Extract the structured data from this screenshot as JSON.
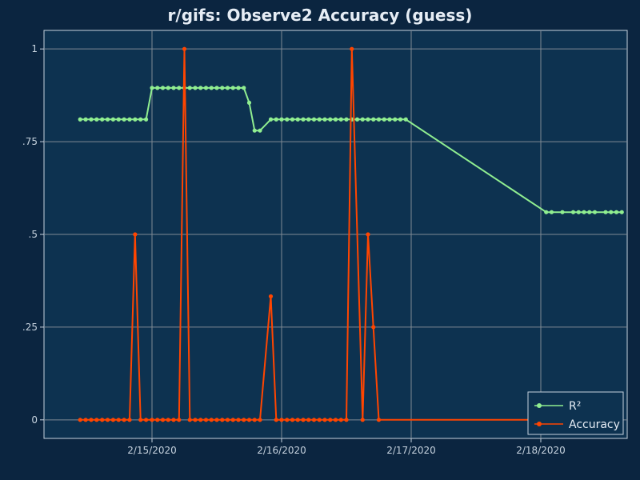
{
  "colors": {
    "page_background": "#0b2540",
    "plot_background": "#0d3250",
    "grid": "#7f8a94",
    "axis": "#c6d2de",
    "r2": "#90ee90",
    "accuracy": "#ff4500"
  },
  "chart_data": {
    "type": "line",
    "title": "r/gifs: Observe2 Accuracy (guess)",
    "xlabel": "",
    "ylabel": "",
    "x_axis": {
      "type": "date",
      "range": [
        "2020-02-14T04:00",
        "2020-02-18T16:00"
      ],
      "ticks": [
        {
          "value": "2020-02-15T00:00",
          "label": "2/15/2020"
        },
        {
          "value": "2020-02-16T00:00",
          "label": "2/16/2020"
        },
        {
          "value": "2020-02-17T00:00",
          "label": "2/17/2020"
        },
        {
          "value": "2020-02-18T00:00",
          "label": "2/18/2020"
        }
      ]
    },
    "y_axis": {
      "range": [
        -0.05,
        1.05
      ],
      "ticks": [
        {
          "value": 0,
          "label": "0"
        },
        {
          "value": 0.25,
          "label": ".25"
        },
        {
          "value": 0.5,
          "label": ".5"
        },
        {
          "value": 0.75,
          "label": ".75"
        },
        {
          "value": 1,
          "label": "1"
        }
      ]
    },
    "grid": true,
    "legend_position": "bottom-right",
    "series": [
      {
        "name": "R²",
        "color": "#90ee90",
        "points": [
          [
            "2020-02-14T10:42",
            0.81
          ],
          [
            "2020-02-14T11:43",
            0.81
          ],
          [
            "2020-02-14T12:44",
            0.81
          ],
          [
            "2020-02-14T13:45",
            0.81
          ],
          [
            "2020-02-14T14:46",
            0.81
          ],
          [
            "2020-02-14T15:47",
            0.81
          ],
          [
            "2020-02-14T16:48",
            0.81
          ],
          [
            "2020-02-14T17:49",
            0.81
          ],
          [
            "2020-02-14T18:50",
            0.81
          ],
          [
            "2020-02-14T19:51",
            0.81
          ],
          [
            "2020-02-14T20:52",
            0.81
          ],
          [
            "2020-02-14T21:53",
            0.81
          ],
          [
            "2020-02-14T22:54",
            0.81
          ],
          [
            "2020-02-15T00:00",
            0.895
          ],
          [
            "2020-02-15T01:00",
            0.895
          ],
          [
            "2020-02-15T02:00",
            0.895
          ],
          [
            "2020-02-15T03:00",
            0.895
          ],
          [
            "2020-02-15T04:00",
            0.895
          ],
          [
            "2020-02-15T05:00",
            0.895
          ],
          [
            "2020-02-15T06:00",
            0.895
          ],
          [
            "2020-02-15T07:00",
            0.895
          ],
          [
            "2020-02-15T08:00",
            0.895
          ],
          [
            "2020-02-15T09:00",
            0.895
          ],
          [
            "2020-02-15T10:00",
            0.895
          ],
          [
            "2020-02-15T11:00",
            0.895
          ],
          [
            "2020-02-15T12:00",
            0.895
          ],
          [
            "2020-02-15T13:00",
            0.895
          ],
          [
            "2020-02-15T14:00",
            0.895
          ],
          [
            "2020-02-15T15:00",
            0.895
          ],
          [
            "2020-02-15T16:00",
            0.895
          ],
          [
            "2020-02-15T17:00",
            0.895
          ],
          [
            "2020-02-15T18:00",
            0.855
          ],
          [
            "2020-02-15T19:00",
            0.78
          ],
          [
            "2020-02-15T20:00",
            0.78
          ],
          [
            "2020-02-15T22:00",
            0.81
          ],
          [
            "2020-02-15T23:00",
            0.81
          ],
          [
            "2020-02-16T00:00",
            0.81
          ],
          [
            "2020-02-16T01:00",
            0.81
          ],
          [
            "2020-02-16T02:00",
            0.81
          ],
          [
            "2020-02-16T03:00",
            0.81
          ],
          [
            "2020-02-16T04:00",
            0.81
          ],
          [
            "2020-02-16T05:00",
            0.81
          ],
          [
            "2020-02-16T06:00",
            0.81
          ],
          [
            "2020-02-16T07:00",
            0.81
          ],
          [
            "2020-02-16T08:00",
            0.81
          ],
          [
            "2020-02-16T09:00",
            0.81
          ],
          [
            "2020-02-16T10:00",
            0.81
          ],
          [
            "2020-02-16T11:00",
            0.81
          ],
          [
            "2020-02-16T12:00",
            0.81
          ],
          [
            "2020-02-16T13:00",
            0.81
          ],
          [
            "2020-02-16T14:00",
            0.81
          ],
          [
            "2020-02-16T15:00",
            0.81
          ],
          [
            "2020-02-16T16:00",
            0.81
          ],
          [
            "2020-02-16T17:00",
            0.81
          ],
          [
            "2020-02-16T18:00",
            0.81
          ],
          [
            "2020-02-16T19:00",
            0.81
          ],
          [
            "2020-02-16T20:00",
            0.81
          ],
          [
            "2020-02-16T21:00",
            0.81
          ],
          [
            "2020-02-16T22:00",
            0.81
          ],
          [
            "2020-02-16T23:00",
            0.81
          ],
          [
            "2020-02-18T01:00",
            0.56
          ],
          [
            "2020-02-18T02:00",
            0.56
          ],
          [
            "2020-02-18T04:00",
            0.56
          ],
          [
            "2020-02-18T06:00",
            0.56
          ],
          [
            "2020-02-18T07:00",
            0.56
          ],
          [
            "2020-02-18T08:00",
            0.56
          ],
          [
            "2020-02-18T09:00",
            0.56
          ],
          [
            "2020-02-18T10:00",
            0.56
          ],
          [
            "2020-02-18T12:00",
            0.56
          ],
          [
            "2020-02-18T13:00",
            0.56
          ],
          [
            "2020-02-18T14:00",
            0.56
          ],
          [
            "2020-02-18T15:00",
            0.56
          ]
        ]
      },
      {
        "name": "Accuracy",
        "color": "#ff4500",
        "points": [
          [
            "2020-02-14T10:42",
            0
          ],
          [
            "2020-02-14T11:43",
            0
          ],
          [
            "2020-02-14T12:44",
            0
          ],
          [
            "2020-02-14T13:45",
            0
          ],
          [
            "2020-02-14T14:46",
            0
          ],
          [
            "2020-02-14T15:47",
            0
          ],
          [
            "2020-02-14T16:48",
            0
          ],
          [
            "2020-02-14T17:49",
            0
          ],
          [
            "2020-02-14T18:50",
            0
          ],
          [
            "2020-02-14T19:51",
            0
          ],
          [
            "2020-02-14T20:52",
            0.5
          ],
          [
            "2020-02-14T21:53",
            0
          ],
          [
            "2020-02-14T22:54",
            0
          ],
          [
            "2020-02-15T00:00",
            0
          ],
          [
            "2020-02-15T01:00",
            0
          ],
          [
            "2020-02-15T02:00",
            0
          ],
          [
            "2020-02-15T03:00",
            0
          ],
          [
            "2020-02-15T04:00",
            0
          ],
          [
            "2020-02-15T05:00",
            0
          ],
          [
            "2020-02-15T06:00",
            1
          ],
          [
            "2020-02-15T07:00",
            0
          ],
          [
            "2020-02-15T08:00",
            0
          ],
          [
            "2020-02-15T09:00",
            0
          ],
          [
            "2020-02-15T10:00",
            0
          ],
          [
            "2020-02-15T11:00",
            0
          ],
          [
            "2020-02-15T12:00",
            0
          ],
          [
            "2020-02-15T13:00",
            0
          ],
          [
            "2020-02-15T14:00",
            0
          ],
          [
            "2020-02-15T15:00",
            0
          ],
          [
            "2020-02-15T16:00",
            0
          ],
          [
            "2020-02-15T17:00",
            0
          ],
          [
            "2020-02-15T18:00",
            0
          ],
          [
            "2020-02-15T19:00",
            0
          ],
          [
            "2020-02-15T20:00",
            0
          ],
          [
            "2020-02-15T22:00",
            0.333
          ],
          [
            "2020-02-15T23:00",
            0
          ],
          [
            "2020-02-16T00:00",
            0
          ],
          [
            "2020-02-16T01:00",
            0
          ],
          [
            "2020-02-16T02:00",
            0
          ],
          [
            "2020-02-16T03:00",
            0
          ],
          [
            "2020-02-16T04:00",
            0
          ],
          [
            "2020-02-16T05:00",
            0
          ],
          [
            "2020-02-16T06:00",
            0
          ],
          [
            "2020-02-16T07:00",
            0
          ],
          [
            "2020-02-16T08:00",
            0
          ],
          [
            "2020-02-16T09:00",
            0
          ],
          [
            "2020-02-16T10:00",
            0
          ],
          [
            "2020-02-16T11:00",
            0
          ],
          [
            "2020-02-16T12:00",
            0
          ],
          [
            "2020-02-16T13:00",
            1
          ],
          [
            "2020-02-16T15:00",
            0
          ],
          [
            "2020-02-16T16:00",
            0.5
          ],
          [
            "2020-02-16T17:00",
            0.25
          ],
          [
            "2020-02-16T18:00",
            0
          ],
          [
            "2020-02-18T01:00",
            0
          ]
        ]
      }
    ]
  }
}
